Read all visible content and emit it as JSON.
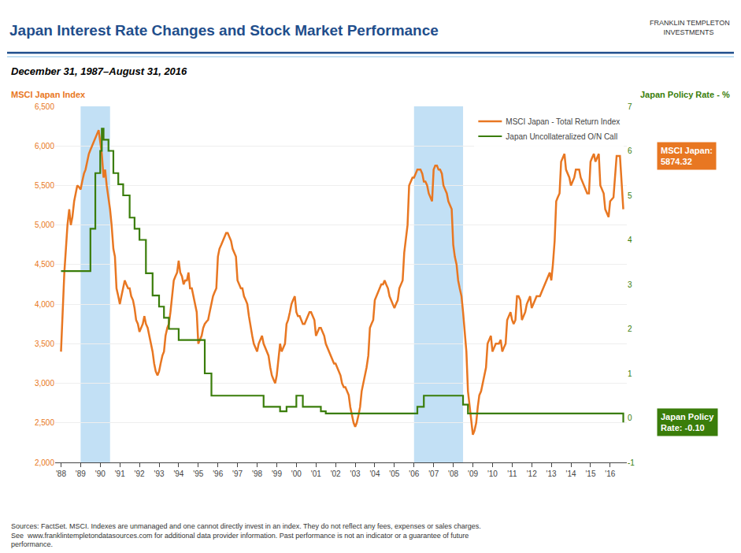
{
  "chart_data": {
    "type": "line",
    "title": "Japan Interest Rate Changes and Stock Market Performance",
    "subtitle": "December 31, 1987–August 31, 2016",
    "ylabel": "MSCI Japan Index",
    "y2label": "Japan Policy Rate - %",
    "xlim": [
      1987.7,
      2016.85
    ],
    "xticks": [
      {
        "value": 1988,
        "label": "'88"
      },
      {
        "value": 1989,
        "label": "'89"
      },
      {
        "value": 1990,
        "label": "'90"
      },
      {
        "value": 1991,
        "label": "'91"
      },
      {
        "value": 1992,
        "label": "'92"
      },
      {
        "value": 1993,
        "label": "'93"
      },
      {
        "value": 1994,
        "label": "'94"
      },
      {
        "value": 1995,
        "label": "'95"
      },
      {
        "value": 1996,
        "label": "'96"
      },
      {
        "value": 1997,
        "label": "'97"
      },
      {
        "value": 1998,
        "label": "'98"
      },
      {
        "value": 1999,
        "label": "'99"
      },
      {
        "value": 2000,
        "label": "'00"
      },
      {
        "value": 2001,
        "label": "'01"
      },
      {
        "value": 2002,
        "label": "'02"
      },
      {
        "value": 2003,
        "label": "'03"
      },
      {
        "value": 2004,
        "label": "'04"
      },
      {
        "value": 2005,
        "label": "'05"
      },
      {
        "value": 2006,
        "label": "'06"
      },
      {
        "value": 2007,
        "label": "'07"
      },
      {
        "value": 2008,
        "label": "'08"
      },
      {
        "value": 2009,
        "label": "'09"
      },
      {
        "value": 2010,
        "label": "'10"
      },
      {
        "value": 2011,
        "label": "'11"
      },
      {
        "value": 2012,
        "label": "'12"
      },
      {
        "value": 2013,
        "label": "'13"
      },
      {
        "value": 2014,
        "label": "'14"
      },
      {
        "value": 2015,
        "label": "'15"
      },
      {
        "value": 2016,
        "label": "'16"
      }
    ],
    "ylim": [
      2000,
      6500
    ],
    "yticks": [
      {
        "value": 2000,
        "label": "2,000"
      },
      {
        "value": 2500,
        "label": "2,500"
      },
      {
        "value": 3000,
        "label": "3,000"
      },
      {
        "value": 3500,
        "label": "3,500"
      },
      {
        "value": 4000,
        "label": "4,000"
      },
      {
        "value": 4500,
        "label": "4,500"
      },
      {
        "value": 5000,
        "label": "5,000"
      },
      {
        "value": 5500,
        "label": "5,500"
      },
      {
        "value": 6000,
        "label": "6,000"
      },
      {
        "value": 6500,
        "label": "6,500"
      }
    ],
    "y2lim": [
      -1,
      7
    ],
    "y2ticks": [
      -1,
      0,
      1,
      2,
      3,
      4,
      5,
      6,
      7
    ],
    "grid": true,
    "legend": "upper right",
    "shaded_regions": [
      {
        "range": [
          1989.0,
          1990.5
        ],
        "color": "#AED6F1"
      },
      {
        "range": [
          2006.0,
          2008.5
        ],
        "color": "#AED6F1"
      }
    ],
    "series": [
      {
        "name": "MSCI Japan - Total Return Index",
        "color": "#E87722",
        "axis": "y",
        "line_style": "solid",
        "x": [
          1988.0,
          1988.08,
          1988.17,
          1988.25,
          1988.33,
          1988.42,
          1988.5,
          1988.58,
          1988.67,
          1988.75,
          1988.83,
          1988.92,
          1989.0,
          1989.08,
          1989.17,
          1989.25,
          1989.33,
          1989.42,
          1989.5,
          1989.58,
          1989.67,
          1989.75,
          1989.83,
          1989.92,
          1990.0,
          1990.08,
          1990.17,
          1990.25,
          1990.33,
          1990.42,
          1990.5,
          1990.58,
          1990.67,
          1990.75,
          1990.83,
          1990.92,
          1991.0,
          1991.08,
          1991.17,
          1991.25,
          1991.33,
          1991.42,
          1991.5,
          1991.58,
          1991.67,
          1991.75,
          1991.83,
          1991.92,
          1992.0,
          1992.08,
          1992.17,
          1992.25,
          1992.33,
          1992.42,
          1992.5,
          1992.58,
          1992.67,
          1992.75,
          1992.83,
          1992.92,
          1993.0,
          1993.08,
          1993.17,
          1993.25,
          1993.33,
          1993.42,
          1993.5,
          1993.58,
          1993.67,
          1993.75,
          1993.83,
          1993.92,
          1994.0,
          1994.08,
          1994.17,
          1994.25,
          1994.33,
          1994.42,
          1994.5,
          1994.58,
          1994.67,
          1994.75,
          1994.83,
          1994.92,
          1995.0,
          1995.08,
          1995.17,
          1995.25,
          1995.33,
          1995.42,
          1995.5,
          1995.58,
          1995.67,
          1995.75,
          1995.83,
          1995.92,
          1996.0,
          1996.08,
          1996.17,
          1996.25,
          1996.33,
          1996.42,
          1996.5,
          1996.58,
          1996.67,
          1996.75,
          1996.83,
          1996.92,
          1997.0,
          1997.08,
          1997.17,
          1997.25,
          1997.33,
          1997.42,
          1997.5,
          1997.58,
          1997.67,
          1997.75,
          1997.83,
          1997.92,
          1998.0,
          1998.08,
          1998.17,
          1998.25,
          1998.33,
          1998.42,
          1998.5,
          1998.58,
          1998.67,
          1998.75,
          1998.83,
          1998.92,
          1999.0,
          1999.08,
          1999.17,
          1999.25,
          1999.33,
          1999.42,
          1999.5,
          1999.58,
          1999.67,
          1999.75,
          1999.83,
          1999.92,
          2000.0,
          2000.08,
          2000.17,
          2000.25,
          2000.33,
          2000.42,
          2000.5,
          2000.58,
          2000.67,
          2000.75,
          2000.83,
          2000.92,
          2001.0,
          2001.08,
          2001.17,
          2001.25,
          2001.33,
          2001.42,
          2001.5,
          2001.58,
          2001.67,
          2001.75,
          2001.83,
          2001.92,
          2002.0,
          2002.08,
          2002.17,
          2002.25,
          2002.33,
          2002.42,
          2002.5,
          2002.58,
          2002.67,
          2002.75,
          2002.83,
          2002.92,
          2003.0,
          2003.08,
          2003.17,
          2003.25,
          2003.33,
          2003.42,
          2003.5,
          2003.58,
          2003.67,
          2003.75,
          2003.83,
          2003.92,
          2004.0,
          2004.08,
          2004.17,
          2004.25,
          2004.33,
          2004.42,
          2004.5,
          2004.58,
          2004.67,
          2004.75,
          2004.83,
          2004.92,
          2005.0,
          2005.08,
          2005.17,
          2005.25,
          2005.33,
          2005.42,
          2005.5,
          2005.58,
          2005.67,
          2005.75,
          2005.83,
          2005.92,
          2006.0,
          2006.08,
          2006.17,
          2006.25,
          2006.33,
          2006.42,
          2006.5,
          2006.58,
          2006.67,
          2006.75,
          2006.83,
          2006.92,
          2007.0,
          2007.08,
          2007.17,
          2007.25,
          2007.33,
          2007.42,
          2007.5,
          2007.58,
          2007.67,
          2007.75,
          2007.83,
          2007.92,
          2008.0,
          2008.08,
          2008.17,
          2008.25,
          2008.33,
          2008.42,
          2008.5,
          2008.58,
          2008.67,
          2008.75,
          2008.83,
          2008.92,
          2009.0,
          2009.08,
          2009.17,
          2009.25,
          2009.33,
          2009.42,
          2009.5,
          2009.58,
          2009.67,
          2009.75,
          2009.83,
          2009.92,
          2010.0,
          2010.08,
          2010.17,
          2010.25,
          2010.33,
          2010.42,
          2010.5,
          2010.58,
          2010.67,
          2010.75,
          2010.83,
          2010.92,
          2011.0,
          2011.08,
          2011.17,
          2011.25,
          2011.33,
          2011.42,
          2011.5,
          2011.58,
          2011.67,
          2011.75,
          2011.83,
          2011.92,
          2012.0,
          2012.08,
          2012.17,
          2012.25,
          2012.33,
          2012.42,
          2012.5,
          2012.58,
          2012.67,
          2012.75,
          2012.83,
          2012.92,
          2013.0,
          2013.08,
          2013.17,
          2013.25,
          2013.33,
          2013.42,
          2013.5,
          2013.58,
          2013.67,
          2013.75,
          2013.83,
          2013.92,
          2014.0,
          2014.08,
          2014.17,
          2014.25,
          2014.33,
          2014.42,
          2014.5,
          2014.58,
          2014.67,
          2014.75,
          2014.83,
          2014.92,
          2015.0,
          2015.08,
          2015.17,
          2015.25,
          2015.33,
          2015.42,
          2015.5,
          2015.58,
          2015.67,
          2015.75,
          2015.83,
          2015.92,
          2016.0,
          2016.17,
          2016.33,
          2016.5,
          2016.67
        ],
        "values": [
          3400,
          3900,
          4400,
          4700,
          5000,
          5200,
          5000,
          5100,
          5300,
          5400,
          5500,
          5480,
          5450,
          5550,
          5650,
          5700,
          5800,
          5900,
          5950,
          6000,
          6050,
          6100,
          6150,
          6200,
          6050,
          5900,
          5600,
          5700,
          5500,
          5350,
          5200,
          5000,
          4700,
          4600,
          4200,
          4100,
          4000,
          4100,
          4200,
          4300,
          4250,
          4200,
          4200,
          4100,
          4050,
          3950,
          3800,
          3750,
          3650,
          3700,
          3750,
          3850,
          3750,
          3700,
          3600,
          3500,
          3400,
          3250,
          3150,
          3100,
          3150,
          3250,
          3350,
          3400,
          3600,
          3700,
          3750,
          3900,
          4100,
          4300,
          4350,
          4400,
          4550,
          4400,
          4350,
          4250,
          4300,
          4300,
          4400,
          4200,
          4200,
          4100,
          4000,
          3900,
          3500,
          3550,
          3600,
          3700,
          3750,
          3780,
          3800,
          3900,
          4000,
          4100,
          4150,
          4200,
          4600,
          4700,
          4750,
          4800,
          4850,
          4900,
          4900,
          4850,
          4800,
          4700,
          4650,
          4600,
          4300,
          4250,
          4200,
          4200,
          4100,
          4050,
          4000,
          3850,
          3700,
          3600,
          3500,
          3450,
          3400,
          3500,
          3550,
          3600,
          3500,
          3450,
          3400,
          3350,
          3200,
          3100,
          3050,
          3000,
          3100,
          3300,
          3500,
          3400,
          3450,
          3500,
          3750,
          3800,
          3900,
          4000,
          4050,
          4100,
          3900,
          3850,
          3850,
          3800,
          3750,
          3750,
          3800,
          3850,
          3900,
          3900,
          3850,
          3800,
          3600,
          3650,
          3700,
          3700,
          3650,
          3600,
          3500,
          3450,
          3400,
          3350,
          3300,
          3250,
          3250,
          3200,
          3150,
          3100,
          3000,
          2950,
          2950,
          2900,
          2850,
          2700,
          2600,
          2500,
          2450,
          2500,
          2600,
          2700,
          2900,
          3000,
          3100,
          3200,
          3350,
          3700,
          3750,
          3800,
          4050,
          4100,
          4150,
          4200,
          4250,
          4250,
          4300,
          4250,
          4200,
          4100,
          4050,
          4000,
          3950,
          4000,
          4050,
          4200,
          4250,
          4300,
          4650,
          4800,
          5000,
          5500,
          5550,
          5600,
          5600,
          5650,
          5700,
          5700,
          5700,
          5650,
          5550,
          5550,
          5500,
          5400,
          5350,
          5300,
          5700,
          5750,
          5750,
          5700,
          5700,
          5650,
          5500,
          5450,
          5400,
          5300,
          5250,
          5200,
          4750,
          4600,
          4500,
          4300,
          4200,
          4100,
          3900,
          3700,
          3400,
          2900,
          2700,
          2550,
          2350,
          2400,
          2500,
          2700,
          2850,
          2900,
          3000,
          3100,
          3200,
          3500,
          3550,
          3600,
          3400,
          3450,
          3500,
          3500,
          3500,
          3550,
          3400,
          3450,
          3500,
          3800,
          3850,
          3900,
          3800,
          3750,
          3800,
          4100,
          4100,
          4050,
          3800,
          3850,
          3900,
          4000,
          4050,
          4100,
          3950,
          4000,
          4050,
          4100,
          4100,
          4100,
          4150,
          4200,
          4250,
          4300,
          4350,
          4400,
          4300,
          4500,
          4800,
          5300,
          5350,
          5400,
          5800,
          5850,
          5900,
          5700,
          5650,
          5600,
          5500,
          5550,
          5600,
          5700,
          5700,
          5700,
          5600,
          5550,
          5500,
          5450,
          5400,
          5400,
          5800,
          5850,
          5900,
          5800,
          5850,
          5900,
          5500,
          5450,
          5400,
          5200,
          5150,
          5100,
          5300,
          5350,
          5874,
          5874,
          5200
        ]
      },
      {
        "name": "Japan Uncollateralized O/N Call",
        "color": "#3A7D0A",
        "axis": "y2",
        "line_style": "step",
        "x": [
          1988.0,
          1989.0,
          1989.5,
          1989.75,
          1990.0,
          1990.08,
          1990.17,
          1990.42,
          1990.67,
          1990.92,
          1991.17,
          1991.5,
          1991.75,
          1992.0,
          1992.33,
          1992.67,
          1993.0,
          1993.25,
          1993.5,
          1994.0,
          1995.0,
          1995.33,
          1995.67,
          1995.92,
          1998.0,
          1998.33,
          1999.17,
          1999.5,
          2000.0,
          2000.33,
          2001.0,
          2001.25,
          2001.5,
          2001.67,
          2006.17,
          2006.5,
          2007.0,
          2008.5,
          2008.75,
          2016.0,
          2016.67
        ],
        "values": [
          3.3,
          3.3,
          4.25,
          5.5,
          6.0,
          6.5,
          6.25,
          6.0,
          5.5,
          5.25,
          5.0,
          4.5,
          4.25,
          4.0,
          3.25,
          2.75,
          2.5,
          2.25,
          2.0,
          1.75,
          1.75,
          1.0,
          0.5,
          0.5,
          0.5,
          0.25,
          0.15,
          0.25,
          0.5,
          0.25,
          0.25,
          0.15,
          0.1,
          0.1,
          0.25,
          0.5,
          0.5,
          0.3,
          0.1,
          0.1,
          -0.1
        ]
      }
    ],
    "annotations": [
      {
        "text": "FRANKLIN TEMPLETON\n       INVESTMENTS"
      },
      {
        "text": "MSCI Japan:\n5874.32",
        "y": 5874,
        "axis": "y"
      },
      {
        "text": "Japan Policy\nRate: -0.10",
        "y": -0.1,
        "axis": "y2"
      }
    ],
    "footer": "Sources: FactSet. MSCI. Indexes are unmanaged and one cannot directly invest in an index. They do not reflect any fees, expenses or sales charges.\nSee  www.franklintempletondatasources.com for additional data provider information. Past performance is not an indicator or a guarantee of future\nperformance."
  }
}
